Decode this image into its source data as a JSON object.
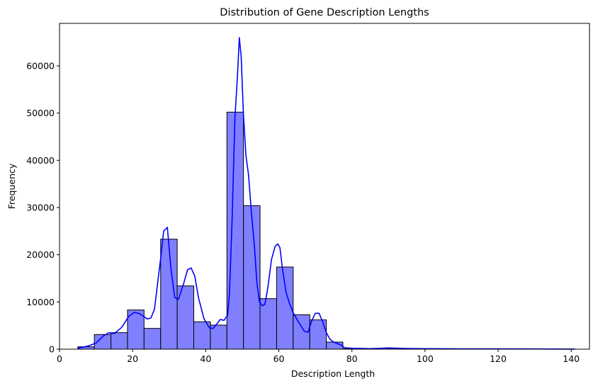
{
  "chart_data": {
    "type": "bar",
    "title": "Distribution of Gene Description Lengths",
    "xlabel": "Description Length",
    "ylabel": "Frequency",
    "xlim": [
      0,
      145
    ],
    "ylim": [
      0,
      69000
    ],
    "x_ticks": [
      0,
      20,
      40,
      60,
      80,
      100,
      120,
      140
    ],
    "y_ticks": [
      0,
      10000,
      20000,
      30000,
      40000,
      50000,
      60000
    ],
    "bin_edges": [
      5.0,
      9.53,
      14.07,
      18.6,
      23.13,
      27.67,
      32.2,
      36.73,
      41.27,
      45.8,
      50.33,
      54.87,
      59.4,
      63.93,
      68.47,
      73.0,
      77.53,
      82.07,
      86.6,
      91.13,
      95.67,
      100.2,
      104.73,
      109.27,
      113.8,
      118.33,
      122.87,
      127.4,
      131.93,
      136.47,
      141.0
    ],
    "values": [
      500,
      3100,
      3500,
      8300,
      4400,
      23300,
      13400,
      5800,
      5100,
      50200,
      30400,
      10700,
      17400,
      7300,
      6200,
      1500,
      100,
      80,
      50,
      40,
      30,
      30,
      20,
      20,
      20,
      15,
      15,
      10,
      10,
      10
    ],
    "kde": {
      "x": [
        5,
        8,
        10,
        12,
        13.5,
        15,
        17,
        19,
        20.5,
        22,
        24,
        25,
        26,
        27,
        27.8,
        28.5,
        29.5,
        30.5,
        31.5,
        32.5,
        34,
        35,
        36,
        37,
        38,
        39.5,
        41,
        42,
        43,
        44,
        45,
        46,
        46.5,
        47.2,
        48,
        48.7,
        49.2,
        49.7,
        50.3,
        51,
        51.7,
        52.5,
        53.3,
        54,
        54.7,
        55.5,
        56.2,
        57,
        58,
        59,
        59.7,
        60.3,
        61,
        62,
        63,
        64,
        65.5,
        67,
        68,
        69,
        70,
        71,
        72,
        73,
        74,
        75,
        77,
        78,
        80,
        85,
        90,
        95,
        100,
        110,
        120,
        130,
        141
      ],
      "y": [
        200,
        700,
        1300,
        2800,
        3500,
        3300,
        4600,
        7000,
        7800,
        7500,
        6400,
        6600,
        8500,
        15000,
        20000,
        25000,
        25800,
        17000,
        11000,
        10500,
        14000,
        16800,
        17200,
        15500,
        11000,
        6500,
        4500,
        4400,
        5300,
        6300,
        6100,
        7200,
        12000,
        27000,
        49000,
        58000,
        66000,
        62000,
        50000,
        41000,
        37000,
        29000,
        22000,
        14000,
        10000,
        9200,
        9500,
        13000,
        19000,
        21800,
        22300,
        21500,
        17000,
        12000,
        9500,
        7600,
        5600,
        3800,
        3600,
        6000,
        7600,
        7600,
        5800,
        3500,
        2100,
        1500,
        900,
        300,
        200,
        100,
        250,
        150,
        100,
        80,
        60,
        50,
        20
      ]
    },
    "bar_fill": "#8080ff",
    "bar_edge": "#000000",
    "kde_color": "#0000ff",
    "grid": false,
    "legend": "none"
  }
}
